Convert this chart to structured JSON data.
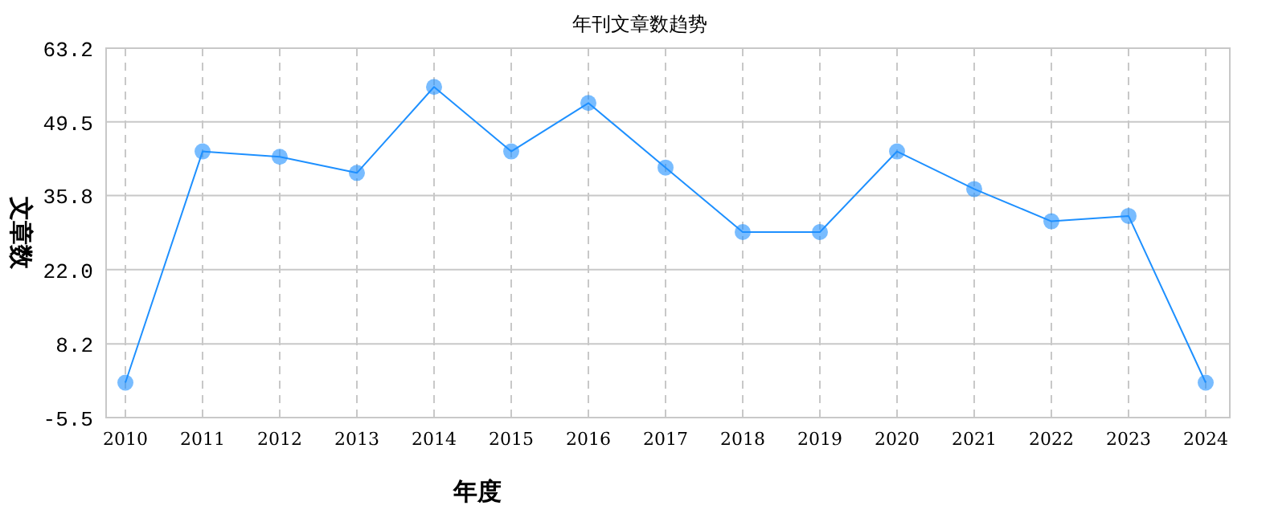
{
  "chart_data": {
    "type": "line",
    "title": "年刊文章数趋势",
    "xlabel": "年度",
    "ylabel": "文章数",
    "categories": [
      "2010",
      "2011",
      "2012",
      "2013",
      "2014",
      "2015",
      "2016",
      "2017",
      "2018",
      "2019",
      "2020",
      "2021",
      "2022",
      "2023",
      "2024"
    ],
    "series": [
      {
        "color": "#1e90ff",
        "values": [
          1,
          44,
          43,
          40,
          56,
          44,
          53,
          41,
          29,
          29,
          44,
          37,
          31,
          32,
          1
        ]
      }
    ],
    "ylim": [
      -5.5,
      63.2
    ],
    "yticks": [
      {
        "value": -5.5,
        "label": "-5.5"
      },
      {
        "value": 8.2,
        "label": "8.2"
      },
      {
        "value": 22.0,
        "label": "22.0"
      },
      {
        "value": 35.8,
        "label": "35.8"
      },
      {
        "value": 49.5,
        "label": "49.5"
      },
      {
        "value": 63.2,
        "label": "63.2"
      }
    ],
    "grid": true,
    "marker": "circle",
    "line_style": "solid"
  }
}
